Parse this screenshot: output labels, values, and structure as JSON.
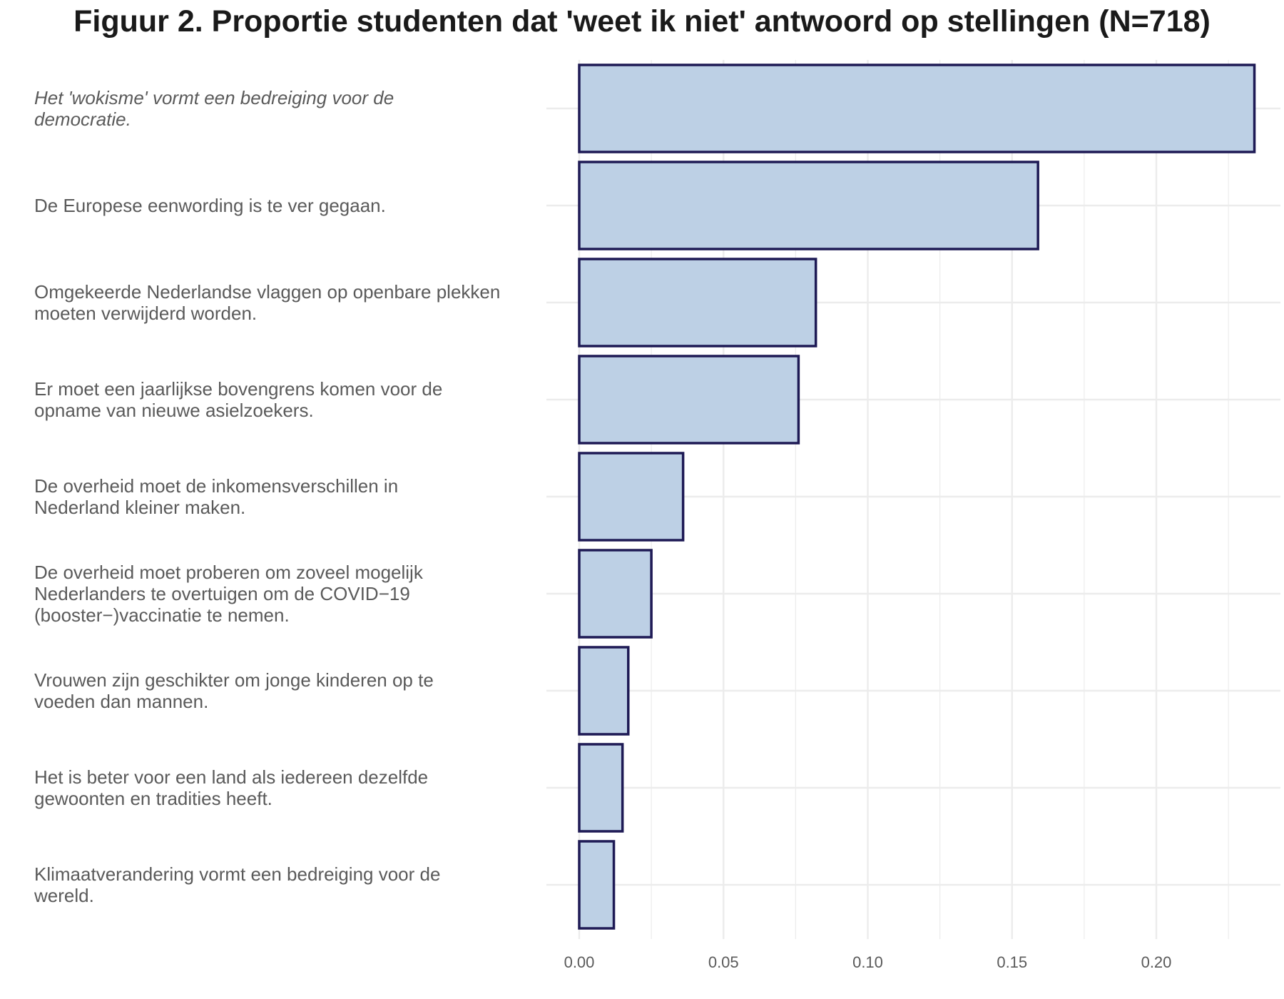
{
  "chart_data": {
    "type": "bar",
    "orientation": "horizontal",
    "title": "Figuur 2. Proportie studenten dat 'weet ik niet' antwoord op stellingen (N=718)",
    "xlabel": "",
    "ylabel": "",
    "xlim": [
      0,
      0.241
    ],
    "xticks": [
      0.0,
      0.05,
      0.1,
      0.15,
      0.2
    ],
    "xtick_labels": [
      "0.00",
      "0.05",
      "0.10",
      "0.15",
      "0.20"
    ],
    "grid": true,
    "legend": "none",
    "colors": {
      "fill": "#bdd0e5",
      "stroke": "#1e1a55",
      "grid": "#ececec"
    },
    "categories": [
      "Het 'wokisme' vormt een bedreiging voor de democratie.",
      "De Europese eenwording is te ver gegaan.",
      "Omgekeerde Nederlandse vlaggen op openbare plekken moeten verwijderd worden.",
      "Er moet een jaarlijkse bovengrens komen voor de opname van nieuwe asielzoekers.",
      "De overheid moet de inkomensverschillen in Nederland kleiner maken.",
      "De overheid moet proberen om zoveel mogelijk Nederlanders te overtuigen om de COVID−19 (booster−)vaccinatie te nemen.",
      "Vrouwen zijn geschikter om jonge kinderen op te voeden dan mannen.",
      "Het is beter voor een land als iedereen dezelfde gewoonten en tradities heeft.",
      "Klimaatverandering vormt een bedreiging voor de wereld."
    ],
    "label_lines": [
      [
        "Het 'wokisme' vormt een bedreiging voor de",
        "democratie."
      ],
      [
        "De Europese eenwording is te ver gegaan."
      ],
      [
        "Omgekeerde Nederlandse vlaggen op openbare plekken",
        "moeten verwijderd worden."
      ],
      [
        "Er moet een jaarlijkse bovengrens komen voor de",
        "opname van nieuwe asielzoekers."
      ],
      [
        "De overheid moet de inkomensverschillen in",
        "Nederland kleiner maken."
      ],
      [
        "De overheid moet proberen om zoveel mogelijk",
        "Nederlanders te overtuigen om de COVID−19",
        "(booster−)vaccinatie te nemen."
      ],
      [
        "Vrouwen zijn geschikter om jonge kinderen op te",
        "voeden dan mannen."
      ],
      [
        "Het is beter voor een land als iedereen dezelfde",
        "gewoonten en tradities heeft."
      ],
      [
        "Klimaatverandering vormt een bedreiging voor de",
        "wereld."
      ]
    ],
    "italic_category_index": 0,
    "values": [
      0.234,
      0.159,
      0.082,
      0.076,
      0.036,
      0.025,
      0.017,
      0.015,
      0.012
    ]
  }
}
